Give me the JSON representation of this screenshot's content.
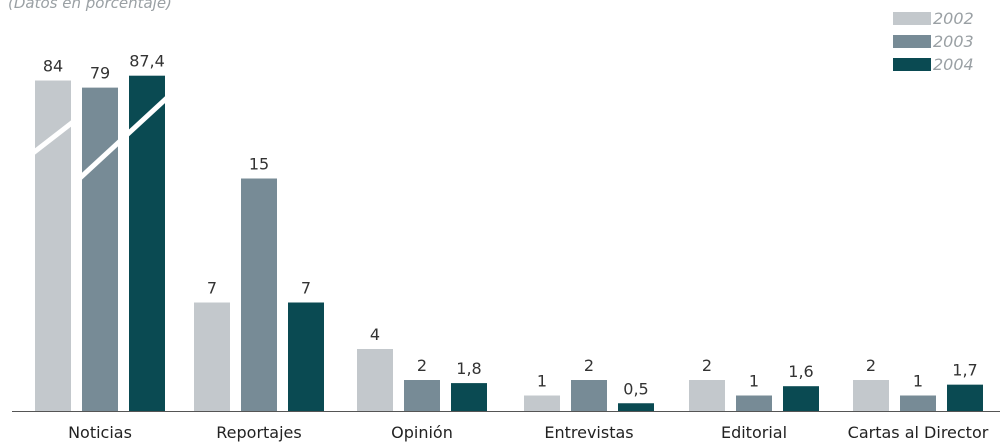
{
  "subtitle": "(Datos en porcentaje)",
  "chart_data": {
    "type": "bar",
    "categories": [
      "Noticias",
      "Reportajes",
      "Opinión",
      "Entrevistas",
      "Editorial",
      "Cartas al Director"
    ],
    "series": [
      {
        "name": "2002",
        "values": [
          84,
          7,
          4,
          1,
          2,
          2
        ],
        "labels": [
          "84",
          "7",
          "4",
          "1",
          "2",
          "2"
        ],
        "color": "#c3c8cc"
      },
      {
        "name": "2003",
        "values": [
          79,
          15,
          2,
          2,
          1,
          1
        ],
        "labels": [
          "79",
          "15",
          "2",
          "2",
          "1",
          "1"
        ],
        "color": "#778b96"
      },
      {
        "name": "2004",
        "values": [
          87.4,
          7,
          1.8,
          0.5,
          1.6,
          1.7
        ],
        "labels": [
          "87,4",
          "7",
          "1,8",
          "0,5",
          "1,6",
          "1,7"
        ],
        "color": "#0a4a52"
      }
    ],
    "legend_position": "top-right",
    "axis_break": "between 15 and 79 (first category bars are broken)",
    "grid": false
  }
}
